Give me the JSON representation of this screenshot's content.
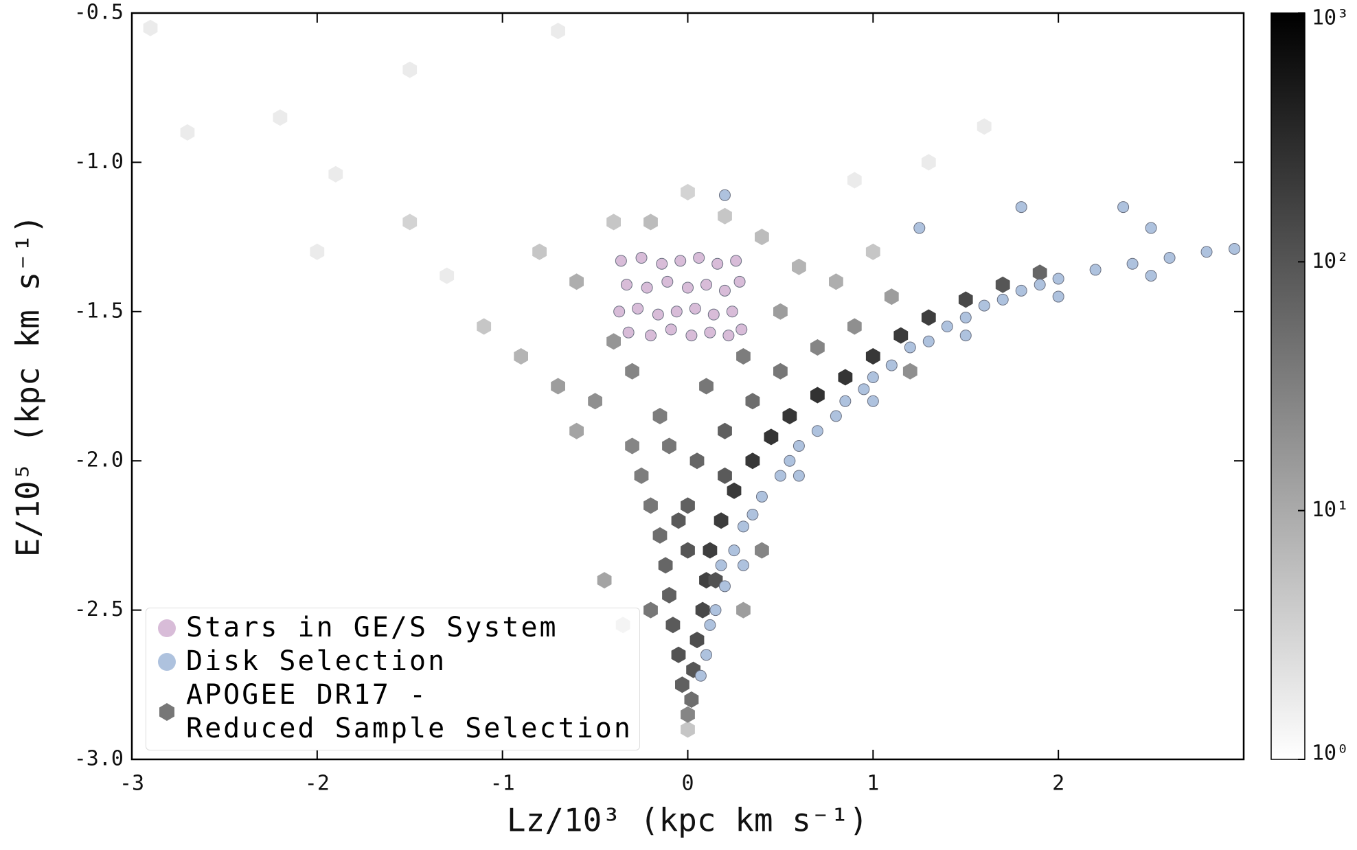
{
  "chart_data": {
    "type": "scatter",
    "xlabel": "Lz/10³ (kpc km s⁻¹)",
    "ylabel": "E/10⁵ (kpc km s⁻¹)",
    "xlim": [
      -3,
      3
    ],
    "xticks": [
      -3,
      -2,
      -1,
      0,
      1,
      2
    ],
    "ylim": [
      -3.0,
      -0.5
    ],
    "yticks": [
      {
        "value": -3.0,
        "label": "-3.0"
      },
      {
        "value": -2.5,
        "label": "-2.5"
      },
      {
        "value": -2.0,
        "label": "-2.0"
      },
      {
        "value": -1.5,
        "label": "-1.5"
      },
      {
        "value": -1.0,
        "label": "-1.0"
      },
      {
        "value": -0.5,
        "label": "-0.5"
      }
    ],
    "colorbar": {
      "log": true,
      "lim": [
        1,
        1000
      ],
      "ticks": [
        {
          "value": 1,
          "label": "10⁰"
        },
        {
          "value": 10,
          "label": "10¹"
        },
        {
          "value": 100,
          "label": "10²"
        },
        {
          "value": 1000,
          "label": "10³"
        }
      ]
    },
    "legend": "lower left",
    "hexbin": {
      "name": "APOGEE DR17 -\nReduced Sample Selection",
      "color": "#777777",
      "x": [
        0,
        0,
        0.02,
        -0.03,
        0.03,
        -0.05,
        0.05,
        -0.08,
        0.08,
        -0.1,
        0.1,
        -0.12,
        0.12,
        -0.15,
        0,
        0.18,
        -0.2,
        0,
        0.25,
        -0.25,
        0.05,
        0.35,
        -0.3,
        0.45,
        0.2,
        -0.15,
        0.55,
        0.7,
        0.35,
        0.85,
        1.0,
        1.15,
        1.3,
        1.5,
        1.7,
        1.9,
        -0.5,
        -0.7,
        -0.3,
        0.5,
        0.7,
        0.9,
        1.1,
        -0.9,
        -1.1,
        -0.6,
        -0.8,
        0.5,
        0.6,
        0.8,
        1.0,
        -0.2,
        0.2,
        0.4,
        -0.4,
        0,
        -1.5,
        -2.0,
        -2.9,
        -2.7,
        -0.7,
        -1.5,
        -2.2,
        -1.9,
        1.6,
        0.9,
        1.3,
        -1.3,
        -0.45,
        0.4,
        -0.35,
        0.3,
        -0.4,
        -0.6,
        0.3,
        0.1,
        -0.1,
        0.2,
        -0.05,
        0.15,
        -0.2,
        1.2
      ],
      "y": [
        -2.9,
        -2.85,
        -2.8,
        -2.75,
        -2.7,
        -2.65,
        -2.6,
        -2.55,
        -2.5,
        -2.45,
        -2.4,
        -2.35,
        -2.3,
        -2.25,
        -2.3,
        -2.2,
        -2.15,
        -2.15,
        -2.1,
        -2.05,
        -2.0,
        -2.0,
        -1.95,
        -1.92,
        -1.9,
        -1.85,
        -1.85,
        -1.78,
        -1.8,
        -1.72,
        -1.65,
        -1.58,
        -1.52,
        -1.46,
        -1.41,
        -1.37,
        -1.8,
        -1.75,
        -1.7,
        -1.7,
        -1.62,
        -1.55,
        -1.45,
        -1.65,
        -1.55,
        -1.4,
        -1.3,
        -1.5,
        -1.35,
        -1.4,
        -1.3,
        -1.2,
        -1.18,
        -1.25,
        -1.2,
        -1.1,
        -1.2,
        -1.3,
        -0.55,
        -0.9,
        -0.56,
        -0.69,
        -0.85,
        -1.04,
        -0.88,
        -1.06,
        -1.0,
        -1.38,
        -2.4,
        -2.3,
        -2.55,
        -2.5,
        -1.6,
        -1.9,
        -1.65,
        -1.75,
        -1.95,
        -2.05,
        -2.2,
        -2.4,
        -2.5,
        -1.7
      ],
      "counts": [
        3,
        20,
        40,
        60,
        80,
        90,
        100,
        70,
        120,
        60,
        150,
        50,
        160,
        40,
        80,
        170,
        30,
        60,
        180,
        25,
        50,
        200,
        20,
        220,
        60,
        25,
        200,
        230,
        40,
        210,
        200,
        180,
        160,
        120,
        80,
        50,
        15,
        10,
        20,
        30,
        20,
        15,
        10,
        5,
        3,
        6,
        3,
        10,
        5,
        6,
        3,
        4,
        3,
        4,
        3,
        2,
        2,
        1,
        1,
        1,
        1,
        1,
        1,
        1,
        1,
        1,
        1,
        1,
        8,
        20,
        5,
        10,
        12,
        8,
        25,
        30,
        30,
        70,
        70,
        90,
        30,
        15
      ]
    },
    "series": [
      {
        "name": "Stars in GE/S System",
        "color": "#d8bcd8",
        "x": [
          -0.36,
          -0.25,
          -0.14,
          -0.04,
          0.06,
          0.16,
          0.26,
          -0.33,
          -0.22,
          -0.11,
          0.0,
          0.1,
          0.2,
          0.28,
          -0.37,
          -0.27,
          -0.16,
          -0.06,
          0.04,
          0.14,
          0.24,
          -0.32,
          -0.2,
          -0.09,
          0.02,
          0.12,
          0.22,
          0.29
        ],
        "y": [
          -1.33,
          -1.32,
          -1.34,
          -1.33,
          -1.32,
          -1.34,
          -1.33,
          -1.41,
          -1.42,
          -1.4,
          -1.42,
          -1.41,
          -1.43,
          -1.4,
          -1.5,
          -1.49,
          -1.51,
          -1.5,
          -1.49,
          -1.51,
          -1.5,
          -1.57,
          -1.58,
          -1.56,
          -1.58,
          -1.57,
          -1.58,
          -1.56
        ]
      },
      {
        "name": "Disk Selection",
        "color": "#aec2de",
        "x": [
          0.07,
          0.1,
          0.12,
          0.15,
          0.2,
          0.18,
          0.25,
          0.3,
          0.35,
          0.4,
          0.5,
          0.55,
          0.6,
          0.7,
          0.8,
          0.85,
          0.95,
          1.0,
          1.1,
          1.2,
          1.3,
          1.4,
          1.5,
          1.6,
          1.7,
          1.8,
          1.9,
          2.0,
          2.2,
          2.4,
          2.6,
          2.8,
          2.95,
          1.25,
          1.8,
          2.35,
          0.2,
          2.5,
          0.3,
          0.6,
          1.0,
          1.5,
          2.0,
          2.5
        ],
        "y": [
          -2.72,
          -2.65,
          -2.55,
          -2.5,
          -2.42,
          -2.35,
          -2.3,
          -2.22,
          -2.18,
          -2.12,
          -2.05,
          -2.0,
          -1.95,
          -1.9,
          -1.85,
          -1.8,
          -1.76,
          -1.72,
          -1.68,
          -1.62,
          -1.6,
          -1.55,
          -1.52,
          -1.48,
          -1.46,
          -1.43,
          -1.41,
          -1.39,
          -1.36,
          -1.34,
          -1.32,
          -1.3,
          -1.29,
          -1.22,
          -1.15,
          -1.15,
          -1.11,
          -1.22,
          -2.35,
          -2.05,
          -1.8,
          -1.58,
          -1.45,
          -1.38
        ]
      }
    ]
  }
}
